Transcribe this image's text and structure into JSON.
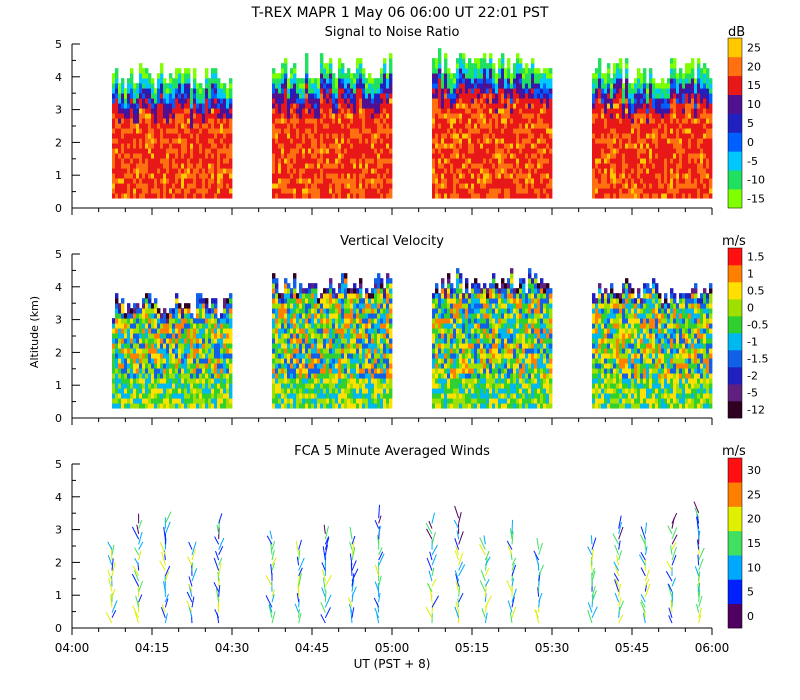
{
  "header": {
    "title": "T-REX   MAPR   1 May 06   06:00 UT   22:01   PST"
  },
  "time_axis": {
    "ticks": [
      "04:00",
      "04:15",
      "04:30",
      "04:45",
      "05:00",
      "05:15",
      "05:30",
      "05:45",
      "06:00"
    ],
    "label": "UT  (PST + 8)"
  },
  "chart_data": [
    {
      "type": "heatmap",
      "title": "Signal to Noise Ratio",
      "xlabel": "UT  (PST + 8)",
      "ylabel": "",
      "xlim": [
        "04:00",
        "06:00"
      ],
      "ylim": [
        0,
        5
      ],
      "yticks": [
        "0",
        "1",
        "2",
        "3",
        "4",
        "5"
      ],
      "colorbar": {
        "unit": "dB",
        "labels": [
          "-15",
          "-10",
          "-5",
          "0",
          "5",
          "10",
          "15",
          "20",
          "25"
        ],
        "colors": [
          "#80ff00",
          "#20e060",
          "#00c8ff",
          "#0060ff",
          "#2020c0",
          "#501090",
          "#e81818",
          "#ff7010",
          "#ffc800"
        ]
      },
      "segments": [
        {
          "start_min": 7.5,
          "end_min": 30,
          "top_km": 4.1
        },
        {
          "start_min": 37.5,
          "end_min": 60,
          "top_km": 4.4
        },
        {
          "start_min": 67.5,
          "end_min": 90,
          "top_km": 4.6
        },
        {
          "start_min": 97.5,
          "end_min": 120,
          "top_km": 4.3
        }
      ]
    },
    {
      "type": "heatmap",
      "title": "Vertical Velocity",
      "xlabel": "UT  (PST + 8)",
      "ylabel": "Altitude (km)",
      "xlim": [
        "04:00",
        "06:00"
      ],
      "ylim": [
        0,
        5
      ],
      "yticks": [
        "0",
        "1",
        "2",
        "3",
        "4",
        "5"
      ],
      "colorbar": {
        "unit": "m/s",
        "labels": [
          "-12",
          "-5",
          "-2",
          "-1.5",
          "-1",
          "-0.5",
          "0",
          "0.5",
          "1",
          "1.5"
        ],
        "colors": [
          "#300020",
          "#602080",
          "#2020c0",
          "#1060e8",
          "#00b8f0",
          "#30d030",
          "#a0e000",
          "#ffe000",
          "#ff8000",
          "#ff1010"
        ]
      },
      "segments": [
        {
          "start_min": 7.5,
          "end_min": 30,
          "top_km": 3.6
        },
        {
          "start_min": 37.5,
          "end_min": 60,
          "top_km": 4.2
        },
        {
          "start_min": 67.5,
          "end_min": 90,
          "top_km": 4.3
        },
        {
          "start_min": 97.5,
          "end_min": 120,
          "top_km": 4.0
        }
      ]
    },
    {
      "type": "scatter",
      "title": "FCA 5 Minute Averaged Winds",
      "xlabel": "UT  (PST + 8)",
      "ylabel": "",
      "xlim": [
        "04:00",
        "06:00"
      ],
      "ylim": [
        0,
        5
      ],
      "yticks": [
        "0",
        "1",
        "2",
        "3",
        "4",
        "5"
      ],
      "colorbar": {
        "unit": "m/s",
        "labels": [
          "0",
          "5",
          "10",
          "15",
          "20",
          "25",
          "30"
        ],
        "colors": [
          "#500060",
          "#0020ff",
          "#00a8ff",
          "#40e060",
          "#e0f000",
          "#ff8000",
          "#ff1010"
        ]
      },
      "profiles_min": [
        7.5,
        12.5,
        17.5,
        22.5,
        27.5,
        37.5,
        42.5,
        47.5,
        52.5,
        57.5,
        67.5,
        72.5,
        77.5,
        82.5,
        87.5,
        97.5,
        102.5,
        107.5,
        112.5,
        117.5
      ]
    }
  ]
}
